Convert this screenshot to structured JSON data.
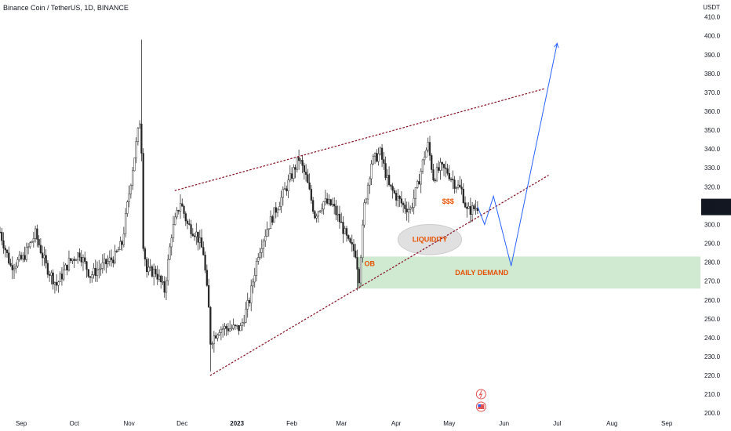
{
  "header": {
    "title": "Binance Coin / TetherUS, 1D, BINANCE",
    "unit": "USDT"
  },
  "price_label": {
    "price": "309.5",
    "countdown": "15:37:57"
  },
  "colors": {
    "up": "#555555",
    "down": "#222222",
    "trendline": "#8b1a2b",
    "projection": "#2962ff",
    "liquidity_label": "#e65100",
    "demand_zone": "#c8e6c9",
    "liquidity_zone": "#e0e0e0"
  },
  "chart_data": {
    "type": "candlestick",
    "y_ticks": [
      200,
      210,
      220,
      230,
      240,
      250,
      260,
      270,
      280,
      290,
      300,
      310,
      320,
      330,
      340,
      350,
      360,
      370,
      380,
      390,
      400,
      410
    ],
    "y_tick_labels": [
      "200.0",
      "210.0",
      "220.0",
      "230.0",
      "240.0",
      "250.0",
      "260.0",
      "270.0",
      "280.0",
      "290.0",
      "300.0",
      "310.0",
      "320.0",
      "330.0",
      "340.0",
      "350.0",
      "360.0",
      "370.0",
      "380.0",
      "390.0",
      "400.0",
      "410.0"
    ],
    "x_ticks": [
      {
        "label": "Sep",
        "date": "2022-09-01"
      },
      {
        "label": "Oct",
        "date": "2022-10-01"
      },
      {
        "label": "Nov",
        "date": "2022-11-01"
      },
      {
        "label": "Dec",
        "date": "2022-12-01"
      },
      {
        "label": "2023",
        "date": "2023-01-01",
        "bold": true
      },
      {
        "label": "Feb",
        "date": "2023-02-01"
      },
      {
        "label": "Mar",
        "date": "2023-03-01"
      },
      {
        "label": "Apr",
        "date": "2023-04-01"
      },
      {
        "label": "May",
        "date": "2023-05-01"
      },
      {
        "label": "Jun",
        "date": "2023-06-01"
      },
      {
        "label": "Jul",
        "date": "2023-07-01"
      },
      {
        "label": "Aug",
        "date": "2023-08-01"
      },
      {
        "label": "Sep",
        "date": "2023-09-01"
      }
    ],
    "price_path": [
      [
        "2022-08-20",
        296
      ],
      [
        "2022-08-26",
        278
      ],
      [
        "2022-09-02",
        282
      ],
      [
        "2022-09-09",
        295
      ],
      [
        "2022-09-15",
        278
      ],
      [
        "2022-09-21",
        268
      ],
      [
        "2022-09-28",
        280
      ],
      [
        "2022-10-04",
        285
      ],
      [
        "2022-10-10",
        273
      ],
      [
        "2022-10-17",
        278
      ],
      [
        "2022-10-24",
        283
      ],
      [
        "2022-10-28",
        290
      ],
      [
        "2022-11-03",
        330
      ],
      [
        "2022-11-07",
        355
      ],
      [
        "2022-11-08",
        340
      ],
      [
        "2022-11-09",
        290
      ],
      [
        "2022-11-11",
        275
      ],
      [
        "2022-11-16",
        275
      ],
      [
        "2022-11-21",
        265
      ],
      [
        "2022-11-25",
        295
      ],
      [
        "2022-11-30",
        312
      ],
      [
        "2022-12-04",
        300
      ],
      [
        "2022-12-09",
        295
      ],
      [
        "2022-12-13",
        285
      ],
      [
        "2022-12-16",
        255
      ],
      [
        "2022-12-17",
        238
      ],
      [
        "2022-12-22",
        245
      ],
      [
        "2022-12-28",
        245
      ],
      [
        "2023-01-03",
        245
      ],
      [
        "2023-01-08",
        260
      ],
      [
        "2023-01-13",
        285
      ],
      [
        "2023-01-18",
        298
      ],
      [
        "2023-01-24",
        310
      ],
      [
        "2023-01-30",
        322
      ],
      [
        "2023-02-05",
        335
      ],
      [
        "2023-02-09",
        325
      ],
      [
        "2023-02-14",
        305
      ],
      [
        "2023-02-19",
        312
      ],
      [
        "2023-02-24",
        310
      ],
      [
        "2023-03-01",
        300
      ],
      [
        "2023-03-05",
        290
      ],
      [
        "2023-03-09",
        285
      ],
      [
        "2023-03-11",
        272
      ],
      [
        "2023-03-14",
        310
      ],
      [
        "2023-03-18",
        333
      ],
      [
        "2023-03-23",
        338
      ],
      [
        "2023-03-28",
        320
      ],
      [
        "2023-04-01",
        315
      ],
      [
        "2023-04-05",
        310
      ],
      [
        "2023-04-09",
        308
      ],
      [
        "2023-04-13",
        320
      ],
      [
        "2023-04-17",
        337
      ],
      [
        "2023-04-19",
        342
      ],
      [
        "2023-04-22",
        325
      ],
      [
        "2023-04-26",
        330
      ],
      [
        "2023-04-30",
        328
      ],
      [
        "2023-05-04",
        322
      ],
      [
        "2023-05-08",
        318
      ],
      [
        "2023-05-11",
        307
      ],
      [
        "2023-05-14",
        308
      ],
      [
        "2023-05-17",
        309.5
      ]
    ],
    "highs": [
      {
        "date": "2022-11-08",
        "value": 398
      },
      {
        "date": "2022-12-17",
        "value": 222
      },
      {
        "date": "2023-03-10",
        "value": 265
      },
      {
        "date": "2023-04-08",
        "value": 301
      }
    ],
    "trendlines": [
      {
        "name": "resistance",
        "from": [
          "2022-11-27",
          318
        ],
        "to": [
          "2023-06-24",
          372
        ]
      },
      {
        "name": "support",
        "from": [
          "2022-12-17",
          220
        ],
        "to": [
          "2023-06-26",
          326
        ]
      }
    ],
    "projection": [
      [
        "2023-05-17",
        309.5
      ],
      [
        "2023-05-21",
        300
      ],
      [
        "2023-05-26",
        315
      ],
      [
        "2023-06-05",
        278
      ],
      [
        "2023-07-01",
        396
      ]
    ],
    "zones": [
      {
        "name": "daily-demand",
        "label": "DAILY DEMAND",
        "from_date": "2023-03-10",
        "to_date": "2023-09-20",
        "low": 266,
        "high": 283
      },
      {
        "name": "liquidity",
        "label": "LIQUIDITY",
        "center_date": "2023-04-20",
        "center_value": 292,
        "rx_days": 18,
        "ry_value": 8
      }
    ],
    "annotations": [
      {
        "text": "OB",
        "date": "2023-03-14",
        "value": 278,
        "color": "#e65100"
      },
      {
        "text": "$$$",
        "date": "2023-04-27",
        "value": 311,
        "color": "#e65100"
      }
    ],
    "y_range": [
      198,
      419
    ],
    "x_range": [
      "2022-08-20",
      "2023-09-20"
    ],
    "grid": false
  }
}
